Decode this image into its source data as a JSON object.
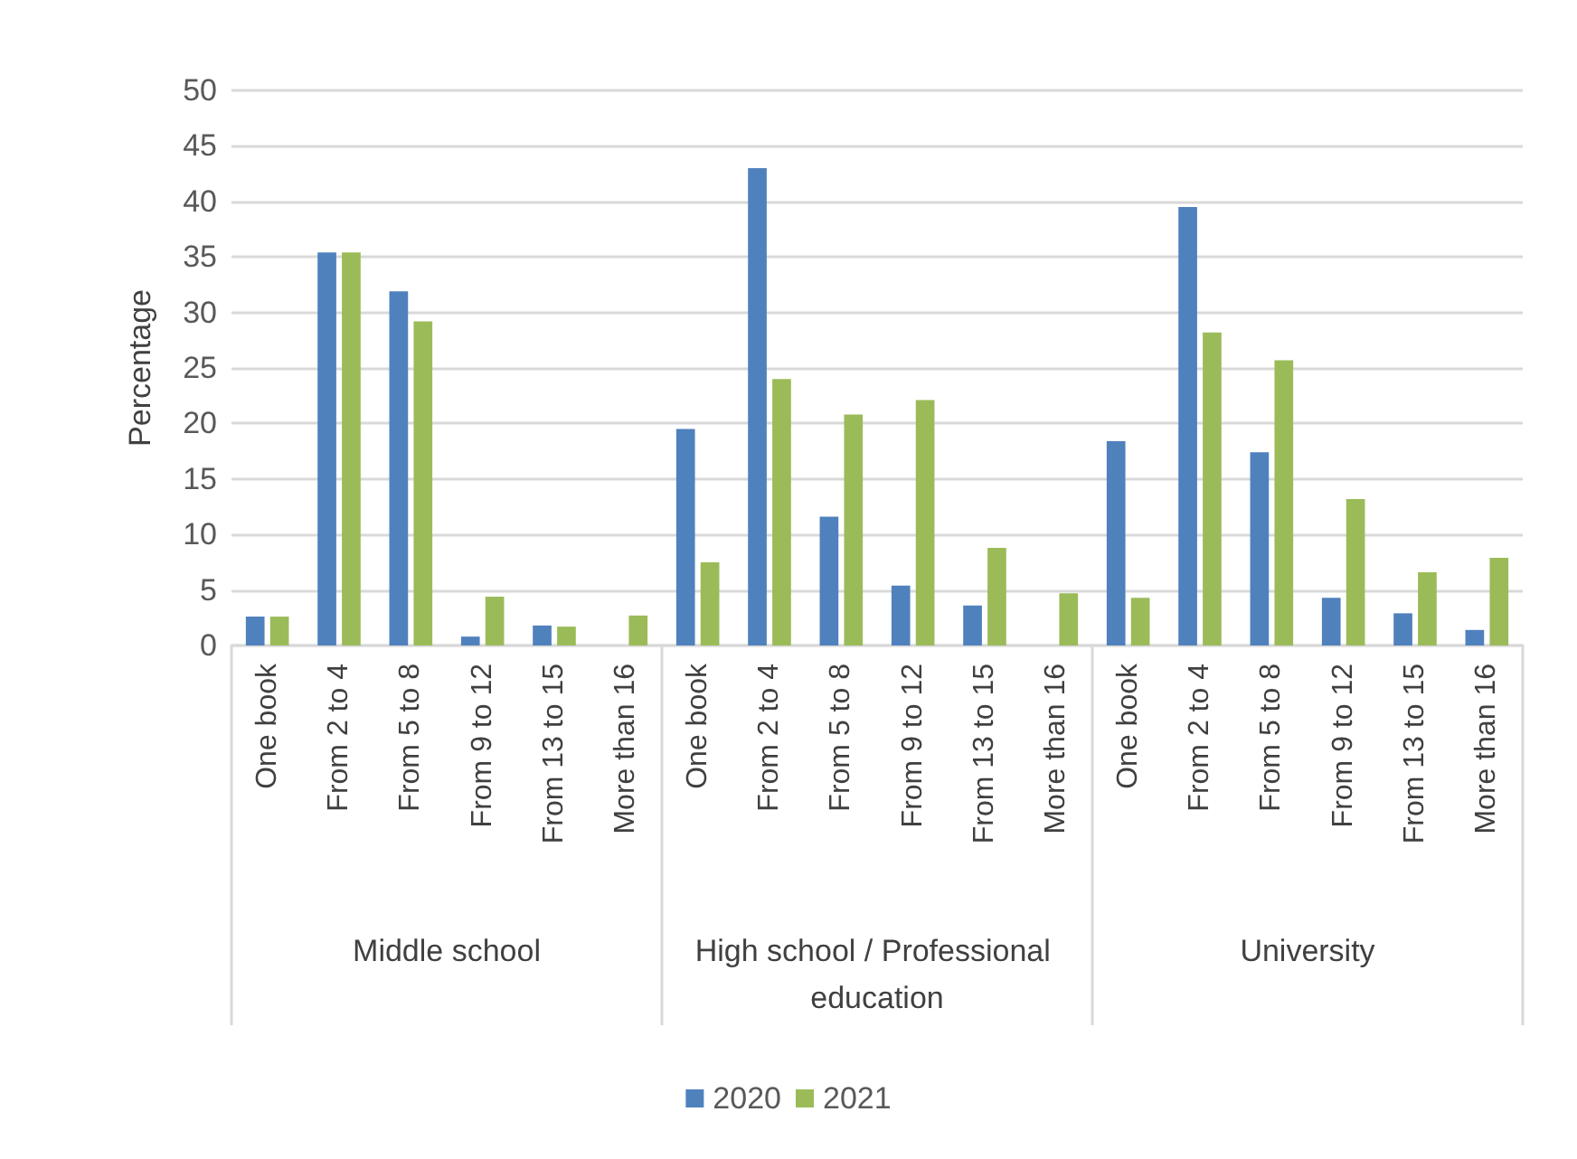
{
  "chart_data": {
    "type": "bar",
    "ylabel": "Percentage",
    "categories": [
      "One book",
      "From 2 to 4",
      "From 5 to 8",
      "From 9 to 12",
      "From 13 to 15",
      "More than 16",
      "One book",
      "From 2 to 4",
      "From 5 to 8",
      "From 9 to 12",
      "From 13 to 15",
      "More than 16",
      "One book",
      "From 2 to 4",
      "From 5 to 8",
      "From 9 to 12",
      "From 13 to 15",
      "More than 16"
    ],
    "annotations": [
      "Middle school",
      "High school / Professional education",
      "University"
    ],
    "series": [
      {
        "name": "2020",
        "color": "#4f81bd",
        "values": [
          2.6,
          35.4,
          31.9,
          0.8,
          1.8,
          null,
          19.5,
          43,
          11.6,
          5.4,
          3.6,
          null,
          18.4,
          39.5,
          17.4,
          4.3,
          2.9,
          1.4
        ]
      },
      {
        "name": "2021",
        "color": "#9bbb59",
        "values": [
          2.6,
          35.4,
          29.2,
          4.4,
          1.7,
          2.7,
          7.5,
          24,
          20.8,
          22.1,
          8.8,
          4.7,
          4.3,
          28.2,
          25.7,
          13.2,
          6.6,
          7.9
        ]
      }
    ],
    "ylim": [
      0,
      50
    ],
    "yticks": [
      0,
      5,
      10,
      15,
      20,
      25,
      30,
      35,
      40,
      45,
      50
    ],
    "grid": "y",
    "legend": "bottom"
  }
}
